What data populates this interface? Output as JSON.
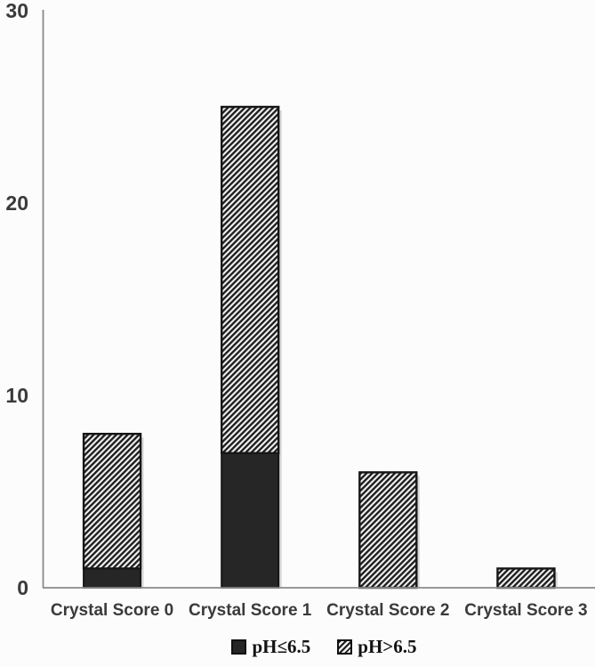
{
  "chart_data": {
    "type": "bar",
    "stacked": true,
    "title": "",
    "xlabel": "",
    "ylabel": "",
    "categories": [
      "Crystal Score 0",
      "Crystal Score 1",
      "Crystal Score 2",
      "Crystal Score 3"
    ],
    "series": [
      {
        "name": "pH≤6.5",
        "style": "solid",
        "values": [
          1,
          7,
          0,
          0
        ]
      },
      {
        "name": "pH>6.5",
        "style": "hatch",
        "values": [
          7,
          18,
          6,
          1
        ]
      }
    ],
    "stack_totals": [
      8,
      25,
      6,
      1
    ],
    "ylim": [
      0,
      30
    ],
    "yticks": [
      0,
      10,
      20,
      30
    ],
    "grid": false,
    "legend_position": "bottom"
  },
  "legend": {
    "items": [
      {
        "label": "pH≤6.5",
        "swatch": "solid-black-square"
      },
      {
        "label": "pH>6.5",
        "swatch": "hatched-square"
      }
    ]
  },
  "colors": {
    "solid_fill": "#262626",
    "bar_border": "#161616",
    "hatch_dark": "#1f1f1f",
    "hatch_light": "#f2f2f2",
    "axis_line": "#8a8a8a",
    "label_text": "#3a3a3a",
    "background": "#fcfcfc",
    "bar_shadow": "#cccccc"
  }
}
